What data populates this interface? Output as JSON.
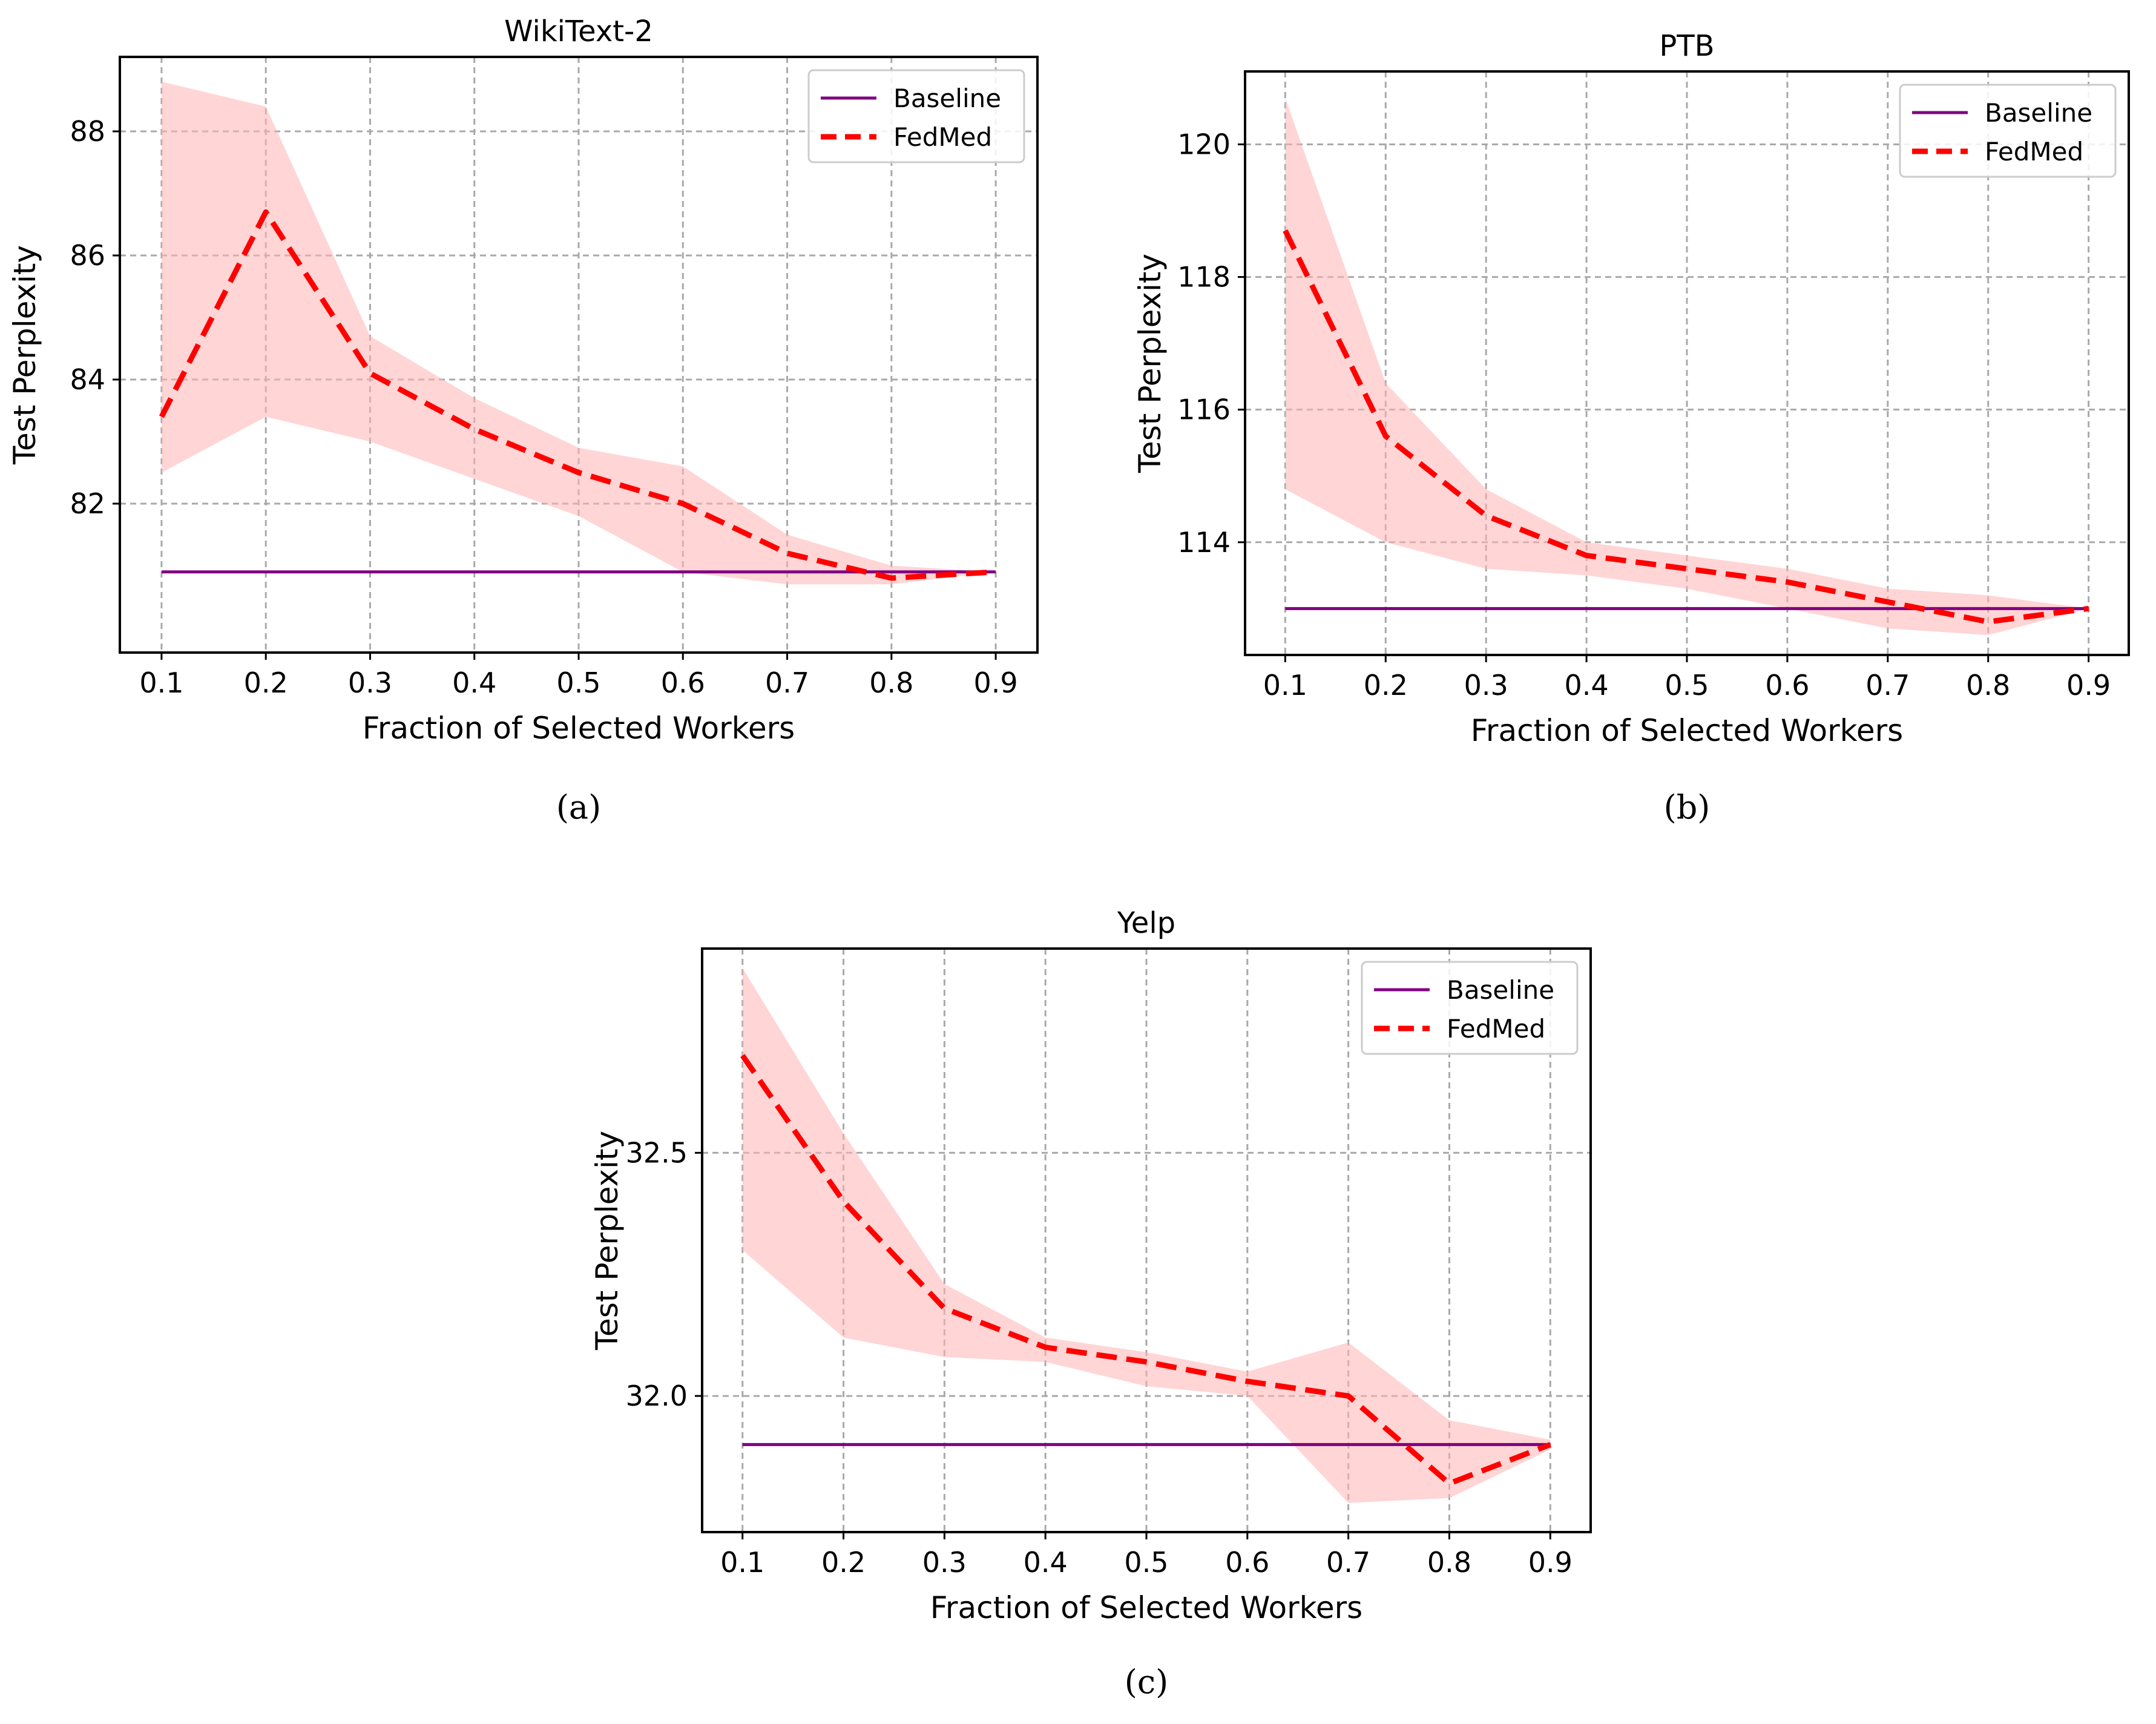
{
  "colors": {
    "baseline": "#800080",
    "fedmed": "#ff0000",
    "band": "#ffb3b3"
  },
  "chart_data": [
    {
      "type": "line",
      "title": "WikiText-2",
      "caption": "(a)",
      "xlabel": "Fraction of Selected Workers",
      "ylabel": "Test Perplexity",
      "x": [
        0.1,
        0.2,
        0.3,
        0.4,
        0.5,
        0.6,
        0.7,
        0.8,
        0.9
      ],
      "xticks": [
        "0.1",
        "0.2",
        "0.3",
        "0.4",
        "0.5",
        "0.6",
        "0.7",
        "0.8",
        "0.9"
      ],
      "xlim": [
        0.06,
        0.94
      ],
      "yticks": [
        82,
        84,
        86,
        88
      ],
      "ytick_labels": [
        "82",
        "84",
        "86",
        "88"
      ],
      "ylim": [
        79.6,
        89.2
      ],
      "grid": true,
      "legend": "top-right",
      "series": [
        {
          "name": "Baseline",
          "style": "solid",
          "values": [
            80.9,
            80.9,
            80.9,
            80.9,
            80.9,
            80.9,
            80.9,
            80.9,
            80.9
          ]
        },
        {
          "name": "FedMed",
          "style": "dashed",
          "values": [
            83.4,
            86.7,
            84.1,
            83.2,
            82.5,
            82.0,
            81.2,
            80.8,
            80.9
          ],
          "band_upper": [
            88.8,
            88.4,
            84.7,
            83.7,
            82.9,
            82.6,
            81.5,
            81.0,
            80.9
          ],
          "band_lower": [
            82.5,
            83.4,
            83.0,
            82.4,
            81.8,
            80.9,
            80.7,
            80.7,
            80.9
          ]
        }
      ]
    },
    {
      "type": "line",
      "title": "PTB",
      "caption": "(b)",
      "xlabel": "Fraction of Selected Workers",
      "ylabel": "Test Perplexity",
      "x": [
        0.1,
        0.2,
        0.3,
        0.4,
        0.5,
        0.6,
        0.7,
        0.8,
        0.9
      ],
      "xticks": [
        "0.1",
        "0.2",
        "0.3",
        "0.4",
        "0.5",
        "0.6",
        "0.7",
        "0.8",
        "0.9"
      ],
      "xlim": [
        0.06,
        0.94
      ],
      "yticks": [
        114,
        116,
        118,
        120
      ],
      "ytick_labels": [
        "114",
        "116",
        "118",
        "120"
      ],
      "ylim": [
        112.3,
        121.1
      ],
      "grid": true,
      "legend": "top-right",
      "series": [
        {
          "name": "Baseline",
          "style": "solid",
          "values": [
            113.0,
            113.0,
            113.0,
            113.0,
            113.0,
            113.0,
            113.0,
            113.0,
            113.0
          ]
        },
        {
          "name": "FedMed",
          "style": "dashed",
          "values": [
            118.7,
            115.6,
            114.4,
            113.8,
            113.6,
            113.4,
            113.1,
            112.8,
            113.0
          ],
          "band_upper": [
            120.7,
            116.4,
            114.8,
            114.0,
            113.8,
            113.6,
            113.3,
            113.2,
            113.0
          ],
          "band_lower": [
            114.8,
            114.0,
            113.6,
            113.5,
            113.3,
            113.0,
            112.7,
            112.6,
            113.0
          ]
        }
      ]
    },
    {
      "type": "line",
      "title": "Yelp",
      "caption": "(c)",
      "xlabel": "Fraction of Selected Workers",
      "ylabel": "Test Perplexity",
      "x": [
        0.1,
        0.2,
        0.3,
        0.4,
        0.5,
        0.6,
        0.7,
        0.8,
        0.9
      ],
      "xticks": [
        "0.1",
        "0.2",
        "0.3",
        "0.4",
        "0.5",
        "0.6",
        "0.7",
        "0.8",
        "0.9"
      ],
      "xlim": [
        0.06,
        0.94
      ],
      "yticks": [
        32.0,
        32.5
      ],
      "ytick_labels": [
        "32.0",
        "32.5"
      ],
      "ylim": [
        31.72,
        32.92
      ],
      "grid": true,
      "legend": "top-right",
      "series": [
        {
          "name": "Baseline",
          "style": "solid",
          "values": [
            31.9,
            31.9,
            31.9,
            31.9,
            31.9,
            31.9,
            31.9,
            31.9,
            31.9
          ]
        },
        {
          "name": "FedMed",
          "style": "dashed",
          "values": [
            32.7,
            32.4,
            32.18,
            32.1,
            32.07,
            32.03,
            32.0,
            31.82,
            31.9
          ],
          "band_upper": [
            32.88,
            32.54,
            32.23,
            32.12,
            32.09,
            32.05,
            32.11,
            31.95,
            31.91
          ],
          "band_lower": [
            32.3,
            32.12,
            32.08,
            32.07,
            32.02,
            32.0,
            31.78,
            31.79,
            31.89
          ]
        }
      ]
    }
  ]
}
